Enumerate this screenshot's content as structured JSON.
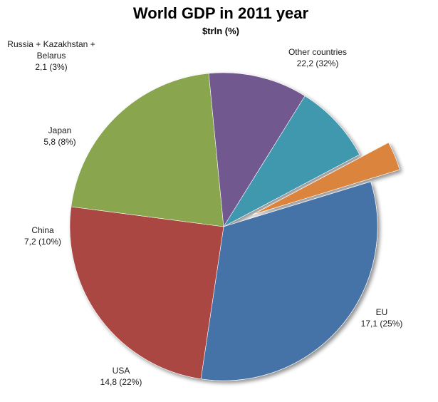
{
  "chart_data": {
    "type": "pie",
    "title": "World GDP in 2011 year",
    "subtitle": "$trln (%)",
    "slices": [
      {
        "name": "Other countries",
        "value": 22.2,
        "value_label": "22,2 (32%)",
        "color": "#4572A7"
      },
      {
        "name": "EU",
        "value": 17.1,
        "value_label": "17,1 (25%)",
        "color": "#AA4643"
      },
      {
        "name": "USA",
        "value": 14.8,
        "value_label": "14,8 (22%)",
        "color": "#89A54E"
      },
      {
        "name": "China",
        "value": 7.2,
        "value_label": "7,2 (10%)",
        "color": "#71588F"
      },
      {
        "name": "Japan",
        "value": 5.8,
        "value_label": "5,8 (8%)",
        "color": "#4198AF"
      },
      {
        "name": "Russia + Kazakhstan + Belarus",
        "name_lines": [
          "Russia + Kazakhstan +",
          "Belarus"
        ],
        "value": 2.1,
        "value_label": "2,1 (3%)",
        "color": "#DB843D",
        "exploded": true
      }
    ]
  }
}
